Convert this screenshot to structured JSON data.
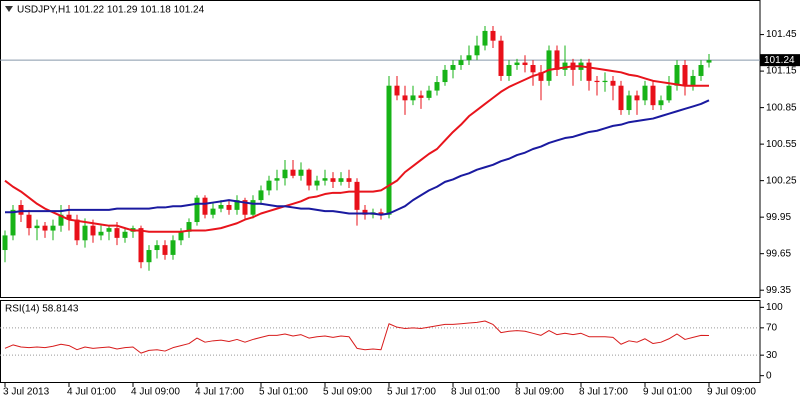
{
  "chart_data": [
    {
      "type": "candlestick",
      "title": "USDJPY,H1  101.22 101.29 101.18 101.24",
      "categories": [
        "3 Jul 2013",
        null,
        null,
        null,
        null,
        null,
        null,
        null,
        "4 Jul 01:00",
        null,
        null,
        null,
        null,
        null,
        null,
        null,
        "4 Jul 09:00",
        null,
        null,
        null,
        null,
        null,
        null,
        null,
        "4 Jul 17:00",
        null,
        null,
        null,
        null,
        null,
        null,
        null,
        "5 Jul 01:00",
        null,
        null,
        null,
        null,
        null,
        null,
        null,
        "5 Jul 09:00",
        null,
        null,
        null,
        null,
        null,
        null,
        null,
        "5 Jul 17:00",
        null,
        null,
        null,
        null,
        null,
        null,
        null,
        "8 Jul 01:00",
        null,
        null,
        null,
        null,
        null,
        null,
        null,
        "8 Jul 09:00",
        null,
        null,
        null,
        null,
        null,
        null,
        null,
        "8 Jul 17:00",
        null,
        null,
        null,
        null,
        null,
        null,
        null,
        "9 Jul 01:00",
        null,
        null,
        null,
        null,
        null,
        null,
        null,
        "9 Jul 09:00"
      ],
      "open": [
        99.68,
        99.8,
        100.05,
        99.97,
        99.86,
        99.88,
        99.84,
        99.88,
        99.97,
        99.93,
        99.76,
        99.88,
        99.8,
        99.83,
        99.86,
        99.78,
        99.83,
        99.86,
        99.58,
        99.68,
        99.72,
        99.64,
        99.76,
        99.83,
        99.91,
        100.11,
        99.97,
        100.02,
        100.05,
        100.01,
        100.09,
        99.97,
        100.09,
        100.17,
        100.25,
        100.27,
        100.34,
        100.29,
        100.34,
        100.21,
        100.25,
        100.27,
        100.24,
        100.27,
        100.24,
        100.01,
        99.97,
        99.99,
        99.97,
        101.03,
        100.95,
        100.91,
        100.95,
        100.93,
        100.99,
        101.06,
        101.16,
        101.2,
        101.24,
        101.28,
        101.36,
        101.48,
        101.4,
        101.11,
        101.2,
        101.22,
        101.2,
        101.14,
        101.07,
        101.32,
        101.16,
        101.22,
        101.16,
        101.22,
        101.07,
        101.06,
        101.07,
        101.03,
        100.83,
        100.95,
        100.91,
        101.03,
        100.87,
        100.91,
        101.03,
        101.2,
        101.03,
        101.11,
        101.22
      ],
      "high": [
        99.84,
        100.05,
        100.09,
        100.01,
        99.93,
        99.91,
        99.93,
        100.05,
        100.05,
        99.97,
        99.94,
        99.93,
        99.88,
        99.88,
        99.91,
        99.86,
        99.88,
        99.88,
        99.72,
        99.76,
        99.76,
        99.8,
        99.86,
        99.94,
        100.13,
        100.13,
        100.07,
        100.09,
        100.09,
        100.13,
        100.11,
        100.13,
        100.21,
        100.29,
        100.34,
        100.42,
        100.42,
        100.4,
        100.35,
        100.29,
        100.34,
        100.32,
        100.32,
        100.34,
        100.27,
        100.05,
        100.02,
        100.02,
        101.11,
        101.11,
        101.03,
        101.03,
        100.99,
        101.03,
        101.11,
        101.2,
        101.24,
        101.28,
        101.36,
        101.44,
        101.52,
        101.52,
        101.44,
        101.24,
        101.25,
        101.28,
        101.24,
        101.2,
        101.36,
        101.36,
        101.36,
        101.25,
        101.25,
        101.25,
        101.11,
        101.14,
        101.11,
        101.07,
        100.99,
        100.99,
        101.07,
        101.07,
        100.95,
        101.11,
        101.24,
        101.24,
        101.16,
        101.24,
        101.29
      ],
      "low": [
        99.58,
        99.76,
        99.91,
        99.8,
        99.76,
        99.78,
        99.76,
        99.83,
        99.84,
        99.72,
        99.7,
        99.74,
        99.76,
        99.76,
        99.72,
        99.74,
        99.78,
        99.53,
        99.51,
        99.61,
        99.6,
        99.6,
        99.72,
        99.78,
        99.88,
        99.94,
        99.94,
        99.99,
        99.97,
        99.97,
        99.93,
        99.94,
        100.05,
        100.13,
        100.17,
        100.21,
        100.27,
        100.25,
        100.17,
        100.17,
        100.21,
        100.19,
        100.21,
        100.19,
        99.88,
        99.93,
        99.94,
        99.93,
        99.94,
        100.91,
        100.79,
        100.87,
        100.84,
        100.91,
        100.95,
        101.03,
        101.09,
        101.16,
        101.2,
        101.24,
        101.32,
        101.34,
        101.07,
        101.07,
        101.16,
        101.14,
        101.03,
        100.91,
        101.03,
        101.11,
        101.11,
        101.03,
        101.07,
        100.99,
        100.95,
        100.98,
        100.91,
        100.79,
        100.79,
        100.79,
        100.87,
        100.83,
        100.83,
        100.89,
        100.99,
        100.95,
        100.99,
        101.07,
        101.18
      ],
      "close": [
        99.8,
        100.01,
        99.97,
        99.86,
        99.88,
        99.84,
        99.88,
        99.97,
        99.93,
        99.76,
        99.88,
        99.8,
        99.83,
        99.86,
        99.78,
        99.83,
        99.86,
        99.58,
        99.68,
        99.72,
        99.64,
        99.76,
        99.83,
        99.91,
        100.11,
        99.97,
        100.02,
        100.05,
        100.01,
        100.09,
        99.97,
        100.09,
        100.17,
        100.25,
        100.27,
        100.34,
        100.29,
        100.34,
        100.21,
        100.25,
        100.27,
        100.24,
        100.27,
        100.24,
        100.01,
        99.97,
        99.99,
        99.97,
        101.03,
        100.95,
        100.91,
        100.95,
        100.93,
        100.99,
        101.06,
        101.16,
        101.2,
        101.24,
        101.28,
        101.36,
        101.48,
        101.4,
        101.11,
        101.2,
        101.22,
        101.2,
        101.14,
        101.07,
        101.32,
        101.16,
        101.22,
        101.16,
        101.22,
        101.07,
        101.06,
        101.07,
        101.03,
        100.83,
        100.95,
        100.91,
        101.03,
        100.87,
        100.91,
        101.03,
        101.2,
        101.03,
        101.11,
        101.2,
        101.24
      ],
      "up_color": "#17b317",
      "down_color": "#e8101a",
      "series": [
        {
          "color": "#e8141c",
          "values": [
            100.25,
            100.2,
            100.16,
            100.11,
            100.06,
            100.02,
            99.99,
            99.96,
            99.93,
            99.92,
            99.91,
            99.9,
            99.89,
            99.88,
            99.88,
            99.86,
            99.84,
            99.84,
            99.83,
            99.83,
            99.83,
            99.83,
            99.83,
            99.84,
            99.84,
            99.84,
            99.85,
            99.86,
            99.88,
            99.9,
            99.93,
            99.95,
            99.98,
            100.0,
            100.02,
            100.04,
            100.06,
            100.08,
            100.11,
            100.12,
            100.14,
            100.15,
            100.15,
            100.16,
            100.16,
            100.16,
            100.16,
            100.17,
            100.21,
            100.25,
            100.32,
            100.37,
            100.42,
            100.47,
            100.51,
            100.58,
            100.65,
            100.71,
            100.78,
            100.83,
            100.88,
            100.93,
            100.98,
            101.02,
            101.05,
            101.08,
            101.11,
            101.13,
            101.16,
            101.17,
            101.18,
            101.19,
            101.19,
            101.18,
            101.17,
            101.16,
            101.15,
            101.14,
            101.12,
            101.11,
            101.09,
            101.07,
            101.06,
            101.05,
            101.04,
            101.03,
            101.03,
            101.03,
            101.03
          ]
        },
        {
          "color": "#1a1aa0",
          "values": [
            99.99,
            99.99,
            100.0,
            100.0,
            100.0,
            100.0,
            100.0,
            100.0,
            100.01,
            100.01,
            100.01,
            100.01,
            100.01,
            100.01,
            100.02,
            100.02,
            100.02,
            100.02,
            100.02,
            100.03,
            100.03,
            100.04,
            100.04,
            100.05,
            100.06,
            100.06,
            100.07,
            100.08,
            100.09,
            100.08,
            100.07,
            100.06,
            100.06,
            100.05,
            100.04,
            100.04,
            100.03,
            100.02,
            100.02,
            100.01,
            100.0,
            100.0,
            99.99,
            99.98,
            99.98,
            99.98,
            99.98,
            99.97,
            99.98,
            100.01,
            100.04,
            100.09,
            100.13,
            100.17,
            100.2,
            100.24,
            100.26,
            100.29,
            100.31,
            100.34,
            100.36,
            100.38,
            100.41,
            100.43,
            100.46,
            100.48,
            100.51,
            100.53,
            100.56,
            100.58,
            100.6,
            100.61,
            100.63,
            100.65,
            100.66,
            100.68,
            100.7,
            100.71,
            100.73,
            100.74,
            100.75,
            100.76,
            100.78,
            100.8,
            100.82,
            100.84,
            100.86,
            100.88,
            100.91
          ]
        }
      ],
      "last_price": 101.24,
      "ylim": [
        99.29,
        101.73
      ],
      "yticks": [
        101.45,
        101.15,
        100.85,
        100.55,
        100.25,
        99.95,
        99.65,
        99.35
      ]
    },
    {
      "type": "line",
      "title": "RSI(14) 58.8143",
      "series": [
        {
          "color": "#d81c1c",
          "values": [
            40,
            45,
            42,
            41,
            42,
            41,
            43,
            46,
            44,
            38,
            42,
            40,
            41,
            42,
            39,
            41,
            42,
            33,
            37,
            38,
            36,
            41,
            44,
            47,
            55,
            49,
            51,
            52,
            50,
            53,
            49,
            53,
            56,
            59,
            59,
            61,
            58,
            60,
            55,
            57,
            58,
            56,
            58,
            57,
            40,
            38,
            39,
            38,
            76,
            71,
            69,
            70,
            69,
            71,
            73,
            75,
            75,
            76,
            77,
            78,
            80,
            75,
            63,
            65,
            66,
            65,
            62,
            59,
            66,
            60,
            62,
            60,
            62,
            57,
            57,
            57,
            56,
            46,
            51,
            49,
            54,
            47,
            49,
            54,
            61,
            53,
            56,
            59,
            58.81
          ]
        }
      ],
      "levels": [
        70,
        30
      ],
      "ylim": [
        -10,
        110
      ],
      "yticks": [
        100,
        70,
        30,
        0
      ]
    }
  ]
}
